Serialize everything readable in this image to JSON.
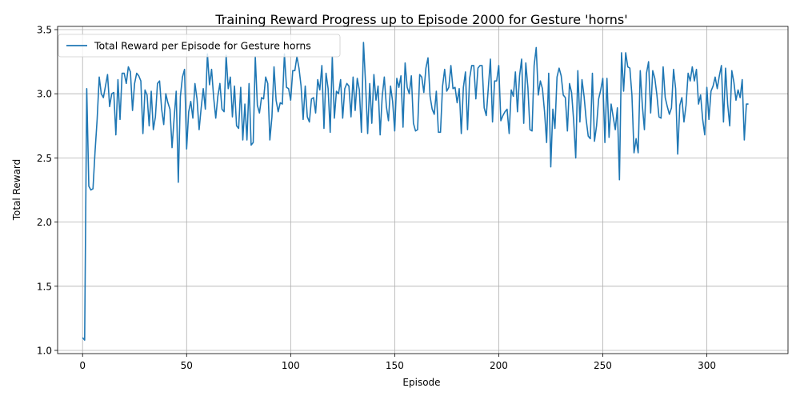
{
  "chart_data": {
    "type": "line",
    "title": "Training Reward Progress up to Episode 2000 for Gesture 'horns'",
    "xlabel": "Episode",
    "ylabel": "Total Reward",
    "xlim": [
      -12,
      339
    ],
    "ylim": [
      0.975,
      3.525
    ],
    "xticks": [
      0,
      50,
      100,
      150,
      200,
      250,
      300
    ],
    "yticks": [
      1.0,
      1.5,
      2.0,
      2.5,
      3.0,
      3.5
    ],
    "ytick_labels": [
      "1.0",
      "1.5",
      "2.0",
      "2.5",
      "3.0",
      "3.5"
    ],
    "grid": true,
    "legend_position": "upper-left",
    "line_color": "#1f77b4",
    "series": [
      {
        "name": "Total Reward per Episode for Gesture horns",
        "x_start": 0,
        "x_step": 1,
        "values": [
          1.1,
          1.08,
          3.04,
          2.28,
          2.25,
          2.26,
          2.55,
          2.8,
          3.13,
          3.0,
          2.97,
          3.06,
          3.15,
          2.9,
          3.0,
          3.01,
          2.68,
          3.11,
          2.8,
          3.16,
          3.16,
          3.08,
          3.21,
          3.17,
          2.87,
          3.08,
          3.16,
          3.14,
          3.1,
          2.69,
          3.03,
          2.99,
          2.75,
          3.02,
          2.72,
          2.82,
          3.08,
          3.1,
          2.88,
          2.76,
          3.0,
          2.93,
          2.88,
          2.58,
          2.81,
          3.02,
          2.31,
          2.98,
          3.13,
          3.19,
          2.57,
          2.86,
          2.94,
          2.81,
          3.08,
          2.96,
          2.72,
          2.89,
          3.04,
          2.88,
          3.31,
          3.07,
          3.19,
          2.97,
          2.81,
          2.98,
          3.08,
          2.88,
          2.86,
          3.3,
          3.04,
          3.13,
          2.82,
          3.06,
          2.75,
          2.73,
          3.05,
          2.64,
          2.92,
          2.64,
          3.08,
          2.6,
          2.62,
          3.29,
          2.91,
          2.85,
          2.97,
          2.96,
          3.13,
          3.08,
          2.64,
          2.82,
          3.21,
          2.95,
          2.86,
          2.93,
          2.92,
          3.31,
          3.05,
          3.04,
          2.95,
          3.18,
          3.18,
          3.29,
          3.2,
          3.06,
          2.8,
          3.06,
          2.82,
          2.78,
          2.96,
          2.97,
          2.85,
          3.11,
          3.03,
          3.22,
          2.73,
          3.16,
          3.04,
          2.7,
          3.29,
          2.81,
          3.02,
          3.0,
          3.11,
          2.81,
          3.04,
          3.08,
          3.06,
          2.82,
          3.13,
          2.87,
          3.12,
          3.03,
          2.7,
          3.4,
          3.08,
          2.69,
          3.08,
          2.77,
          3.15,
          2.95,
          3.06,
          2.68,
          2.98,
          3.13,
          2.9,
          2.79,
          3.06,
          2.94,
          2.71,
          3.12,
          3.05,
          3.14,
          2.74,
          3.24,
          3.05,
          3.0,
          3.14,
          2.77,
          2.71,
          2.72,
          3.15,
          3.13,
          3.01,
          3.2,
          3.28,
          2.98,
          2.88,
          2.84,
          3.02,
          2.7,
          2.7,
          3.06,
          3.19,
          3.02,
          3.05,
          3.22,
          3.04,
          3.05,
          2.93,
          3.04,
          2.69,
          3.05,
          3.17,
          2.72,
          3.12,
          3.22,
          3.22,
          2.96,
          3.2,
          3.22,
          3.22,
          2.89,
          2.83,
          3.05,
          3.27,
          2.78,
          3.1,
          3.1,
          3.22,
          2.79,
          2.83,
          2.86,
          2.88,
          2.69,
          3.03,
          2.98,
          3.17,
          2.86,
          3.14,
          3.27,
          2.77,
          3.24,
          3.05,
          2.72,
          2.71,
          3.22,
          3.36,
          2.99,
          3.1,
          3.04,
          2.86,
          2.62,
          3.16,
          2.43,
          2.88,
          2.73,
          3.13,
          3.2,
          3.14,
          2.99,
          2.97,
          2.71,
          3.08,
          3.01,
          2.79,
          2.5,
          3.18,
          2.78,
          3.11,
          2.98,
          2.8,
          2.67,
          2.65,
          3.16,
          2.63,
          2.75,
          2.96,
          3.03,
          3.12,
          2.62,
          3.12,
          2.66,
          2.92,
          2.82,
          2.72,
          2.89,
          2.33,
          3.32,
          3.02,
          3.32,
          3.21,
          3.2,
          2.99,
          2.54,
          2.65,
          2.54,
          3.18,
          2.91,
          2.72,
          3.16,
          3.25,
          2.85,
          3.18,
          3.12,
          2.99,
          2.82,
          2.81,
          3.21,
          2.97,
          2.9,
          2.84,
          2.89,
          3.19,
          3.04,
          2.53,
          2.91,
          2.97,
          2.78,
          2.91,
          3.16,
          3.1,
          3.21,
          3.1,
          3.19,
          2.92,
          2.99,
          2.8,
          2.68,
          3.05,
          2.8,
          3.02,
          3.06,
          3.13,
          3.04,
          3.14,
          3.22,
          2.78,
          3.2,
          2.92,
          2.75,
          3.18,
          3.09,
          2.95,
          3.03,
          2.97,
          3.11,
          2.64,
          2.92,
          2.92
        ]
      }
    ]
  }
}
